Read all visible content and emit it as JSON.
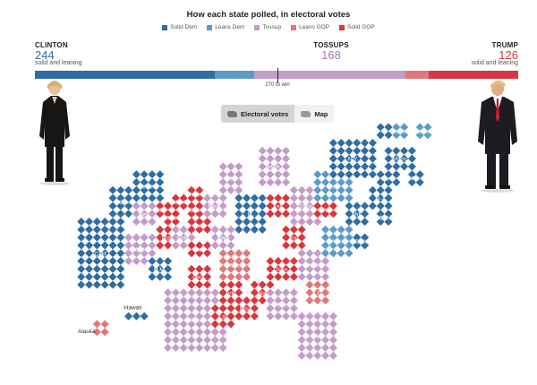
{
  "chart_data": {
    "type": "cartogram",
    "title": "How each state polled, in electoral votes",
    "legend": [
      {
        "label": "Solid Dem",
        "color": "#2f6da4"
      },
      {
        "label": "Leans Dem",
        "color": "#5b9cc7"
      },
      {
        "label": "Tossup",
        "color": "#c49cc9"
      },
      {
        "label": "Leans GOP",
        "color": "#e0787c"
      },
      {
        "label": "Solid GOP",
        "color": "#d8373f"
      }
    ],
    "totals": {
      "clinton": {
        "name": "CLINTON",
        "votes": 244,
        "sub": "solid and leaning",
        "color": "#2f6da4"
      },
      "tossups": {
        "name": "TOSSUPS",
        "votes": 168,
        "color": "#a07ab0"
      },
      "trump": {
        "name": "TRUMP",
        "votes": 126,
        "sub": "solid and leaning",
        "color": "#d8373f"
      }
    },
    "bar_segments": [
      {
        "category": "Solid Dem",
        "votes": 200
      },
      {
        "category": "Leans Dem",
        "votes": 44
      },
      {
        "category": "Tossup",
        "votes": 168
      },
      {
        "category": "Leans GOP",
        "votes": 26
      },
      {
        "category": "Solid GOP",
        "votes": 100
      }
    ],
    "total_votes": 538,
    "win_threshold": 270,
    "win_label": "270 to win",
    "states": [
      {
        "label": "Calif.",
        "cat": "Solid Dem",
        "c": 1,
        "r": 12,
        "w": 6,
        "h": 9
      },
      {
        "label": "Ore.",
        "cat": "Solid Dem",
        "c": 5,
        "r": 8,
        "w": 4,
        "h": 4
      },
      {
        "label": "Wash.",
        "cat": "Solid Dem",
        "c": 8,
        "r": 6,
        "w": 4,
        "h": 4
      },
      {
        "label": "Nev.",
        "cat": "Tossup",
        "c": 8,
        "r": 10,
        "w": 3,
        "h": 3
      },
      {
        "label": "Ariz.",
        "cat": "Tossup",
        "c": 7,
        "r": 14,
        "w": 4,
        "h": 4
      },
      {
        "label": "Idaho",
        "cat": "Solid GOP",
        "c": 11,
        "r": 10,
        "w": 2,
        "h": 2
      },
      {
        "label": "Mont.",
        "cat": "Solid GOP",
        "c": 13,
        "r": 9,
        "w": 2,
        "h": 2
      },
      {
        "label": "Wyo.",
        "cat": "Solid GOP",
        "c": 12,
        "r": 11,
        "w": 2,
        "h": 2
      },
      {
        "label": "Utah",
        "cat": "Solid GOP",
        "c": 11,
        "r": 13,
        "w": 3,
        "h": 3
      },
      {
        "label": "Colo.",
        "cat": "Tossup",
        "c": 13,
        "r": 13,
        "w": 3,
        "h": 3
      },
      {
        "label": "N.M.",
        "cat": "Solid Dem",
        "c": 10,
        "r": 17,
        "w": 3,
        "h": 3
      },
      {
        "label": "N.D.",
        "cat": "Solid GOP",
        "c": 15,
        "r": 8,
        "w": 2,
        "h": 2
      },
      {
        "label": "S.D.",
        "cat": "Solid GOP",
        "c": 15,
        "r": 10,
        "w": 2,
        "h": 2
      },
      {
        "label": "Neb.",
        "cat": "Solid GOP",
        "c": 15,
        "r": 12,
        "w": 3,
        "h": 2
      },
      {
        "label": "Kan.",
        "cat": "Solid GOP",
        "c": 15,
        "r": 15,
        "w": 3,
        "h": 2
      },
      {
        "label": "Okla.",
        "cat": "Solid GOP",
        "c": 15,
        "r": 18,
        "w": 3,
        "h": 3
      },
      {
        "label": "Tex.",
        "cat": "Tossup",
        "c": 12,
        "r": 21,
        "w": 8,
        "h": 8
      },
      {
        "label": "Minn.",
        "cat": "Tossup",
        "c": 17,
        "r": 9,
        "w": 3,
        "h": 3
      },
      {
        "label": "Iowa",
        "cat": "Tossup",
        "c": 18,
        "r": 13,
        "w": 3,
        "h": 3
      },
      {
        "label": "Mo.",
        "cat": "Leans GOP",
        "c": 19,
        "r": 16,
        "w": 4,
        "h": 4
      },
      {
        "label": "Ark.",
        "cat": "Solid GOP",
        "c": 19,
        "r": 20,
        "w": 3,
        "h": 3
      },
      {
        "label": "La.",
        "cat": "Solid GOP",
        "c": 18,
        "r": 23,
        "w": 3,
        "h": 3
      },
      {
        "label": "Wis.",
        "cat": "Tossup",
        "c": 19,
        "r": 5,
        "w": 3,
        "h": 4
      },
      {
        "label": "Ill.",
        "cat": "Solid Dem",
        "c": 21,
        "r": 9,
        "w": 4,
        "h": 5
      },
      {
        "label": "Mich.",
        "cat": "Tossup",
        "c": 24,
        "r": 3,
        "w": 4,
        "h": 5
      },
      {
        "label": "Ind.",
        "cat": "Solid GOP",
        "c": 25,
        "r": 9,
        "w": 3,
        "h": 3
      },
      {
        "label": "Ohio",
        "cat": "Tossup",
        "c": 28,
        "r": 8,
        "w": 4,
        "h": 5
      },
      {
        "label": "Ky.",
        "cat": "Solid GOP",
        "c": 27,
        "r": 13,
        "w": 3,
        "h": 3
      },
      {
        "label": "Tenn.",
        "cat": "Solid GOP",
        "c": 25,
        "r": 17,
        "w": 4,
        "h": 3
      },
      {
        "label": "Miss.",
        "cat": "Solid GOP",
        "c": 21,
        "r": 22,
        "w": 3,
        "h": 3
      },
      {
        "label": "Ala.",
        "cat": "Solid GOP",
        "c": 23,
        "r": 20,
        "w": 3,
        "h": 3
      },
      {
        "label": "Ga.",
        "cat": "Tossup",
        "c": 25,
        "r": 21,
        "w": 4,
        "h": 4
      },
      {
        "label": "Fla.",
        "cat": "Tossup",
        "c": 29,
        "r": 24,
        "w": 5,
        "h": 6
      },
      {
        "label": "S.C.",
        "cat": "Leans GOP",
        "c": 30,
        "r": 20,
        "w": 3,
        "h": 3
      },
      {
        "label": "N.C.",
        "cat": "Tossup",
        "c": 29,
        "r": 16,
        "w": 4,
        "h": 4
      },
      {
        "label": "Va.",
        "cat": "Leans Dem",
        "c": 32,
        "r": 13,
        "w": 4,
        "h": 4
      },
      {
        "label": "W.Va.",
        "cat": "Solid GOP",
        "c": 31,
        "r": 10,
        "w": 3,
        "h": 2
      },
      {
        "label": "Pa.",
        "cat": "Leans Dem",
        "c": 31,
        "r": 6,
        "w": 5,
        "h": 4
      },
      {
        "label": "Md.",
        "cat": "Solid Dem",
        "c": 35,
        "r": 10,
        "w": 3,
        "h": 3
      },
      {
        "label": "Del.",
        "cat": "Solid Dem",
        "c": 39,
        "r": 11,
        "w": 2,
        "h": 2
      },
      {
        "label": "N.J.",
        "cat": "Solid Dem",
        "c": 38,
        "r": 8,
        "w": 3,
        "h": 3
      },
      {
        "label": "D.C.",
        "cat": "Solid Dem",
        "c": 36,
        "r": 14,
        "w": 2,
        "h": 2
      },
      {
        "label": "N.Y.",
        "cat": "Solid Dem",
        "c": 33,
        "r": 2,
        "w": 6,
        "h": 5
      },
      {
        "label": "Conn.",
        "cat": "Solid Dem",
        "c": 39,
        "r": 6,
        "w": 3,
        "h": 2
      },
      {
        "label": "Mass.",
        "cat": "Solid Dem",
        "c": 40,
        "r": 3,
        "w": 4,
        "h": 3
      },
      {
        "label": "R.I.",
        "cat": "Solid Dem",
        "c": 43,
        "r": 6,
        "w": 2,
        "h": 2
      },
      {
        "label": "Vt.",
        "cat": "Solid Dem",
        "c": 39,
        "r": 0,
        "w": 2,
        "h": 2
      },
      {
        "label": "N.H.",
        "cat": "Leans Dem",
        "c": 41,
        "r": 0,
        "w": 2,
        "h": 2
      },
      {
        "label": "Maine",
        "cat": "Leans Dem",
        "c": 44,
        "r": 0,
        "w": 2,
        "h": 2
      },
      {
        "label": "Alaska",
        "cat": "Leans GOP",
        "c": 3,
        "r": 25,
        "w": 2,
        "h": 2
      },
      {
        "label": "Hawaii",
        "cat": "Solid Dem",
        "c": 7,
        "r": 24,
        "w": 3,
        "h": 1
      }
    ]
  },
  "toggle": {
    "electoral_label": "Electoral votes",
    "map_label": "Map"
  }
}
